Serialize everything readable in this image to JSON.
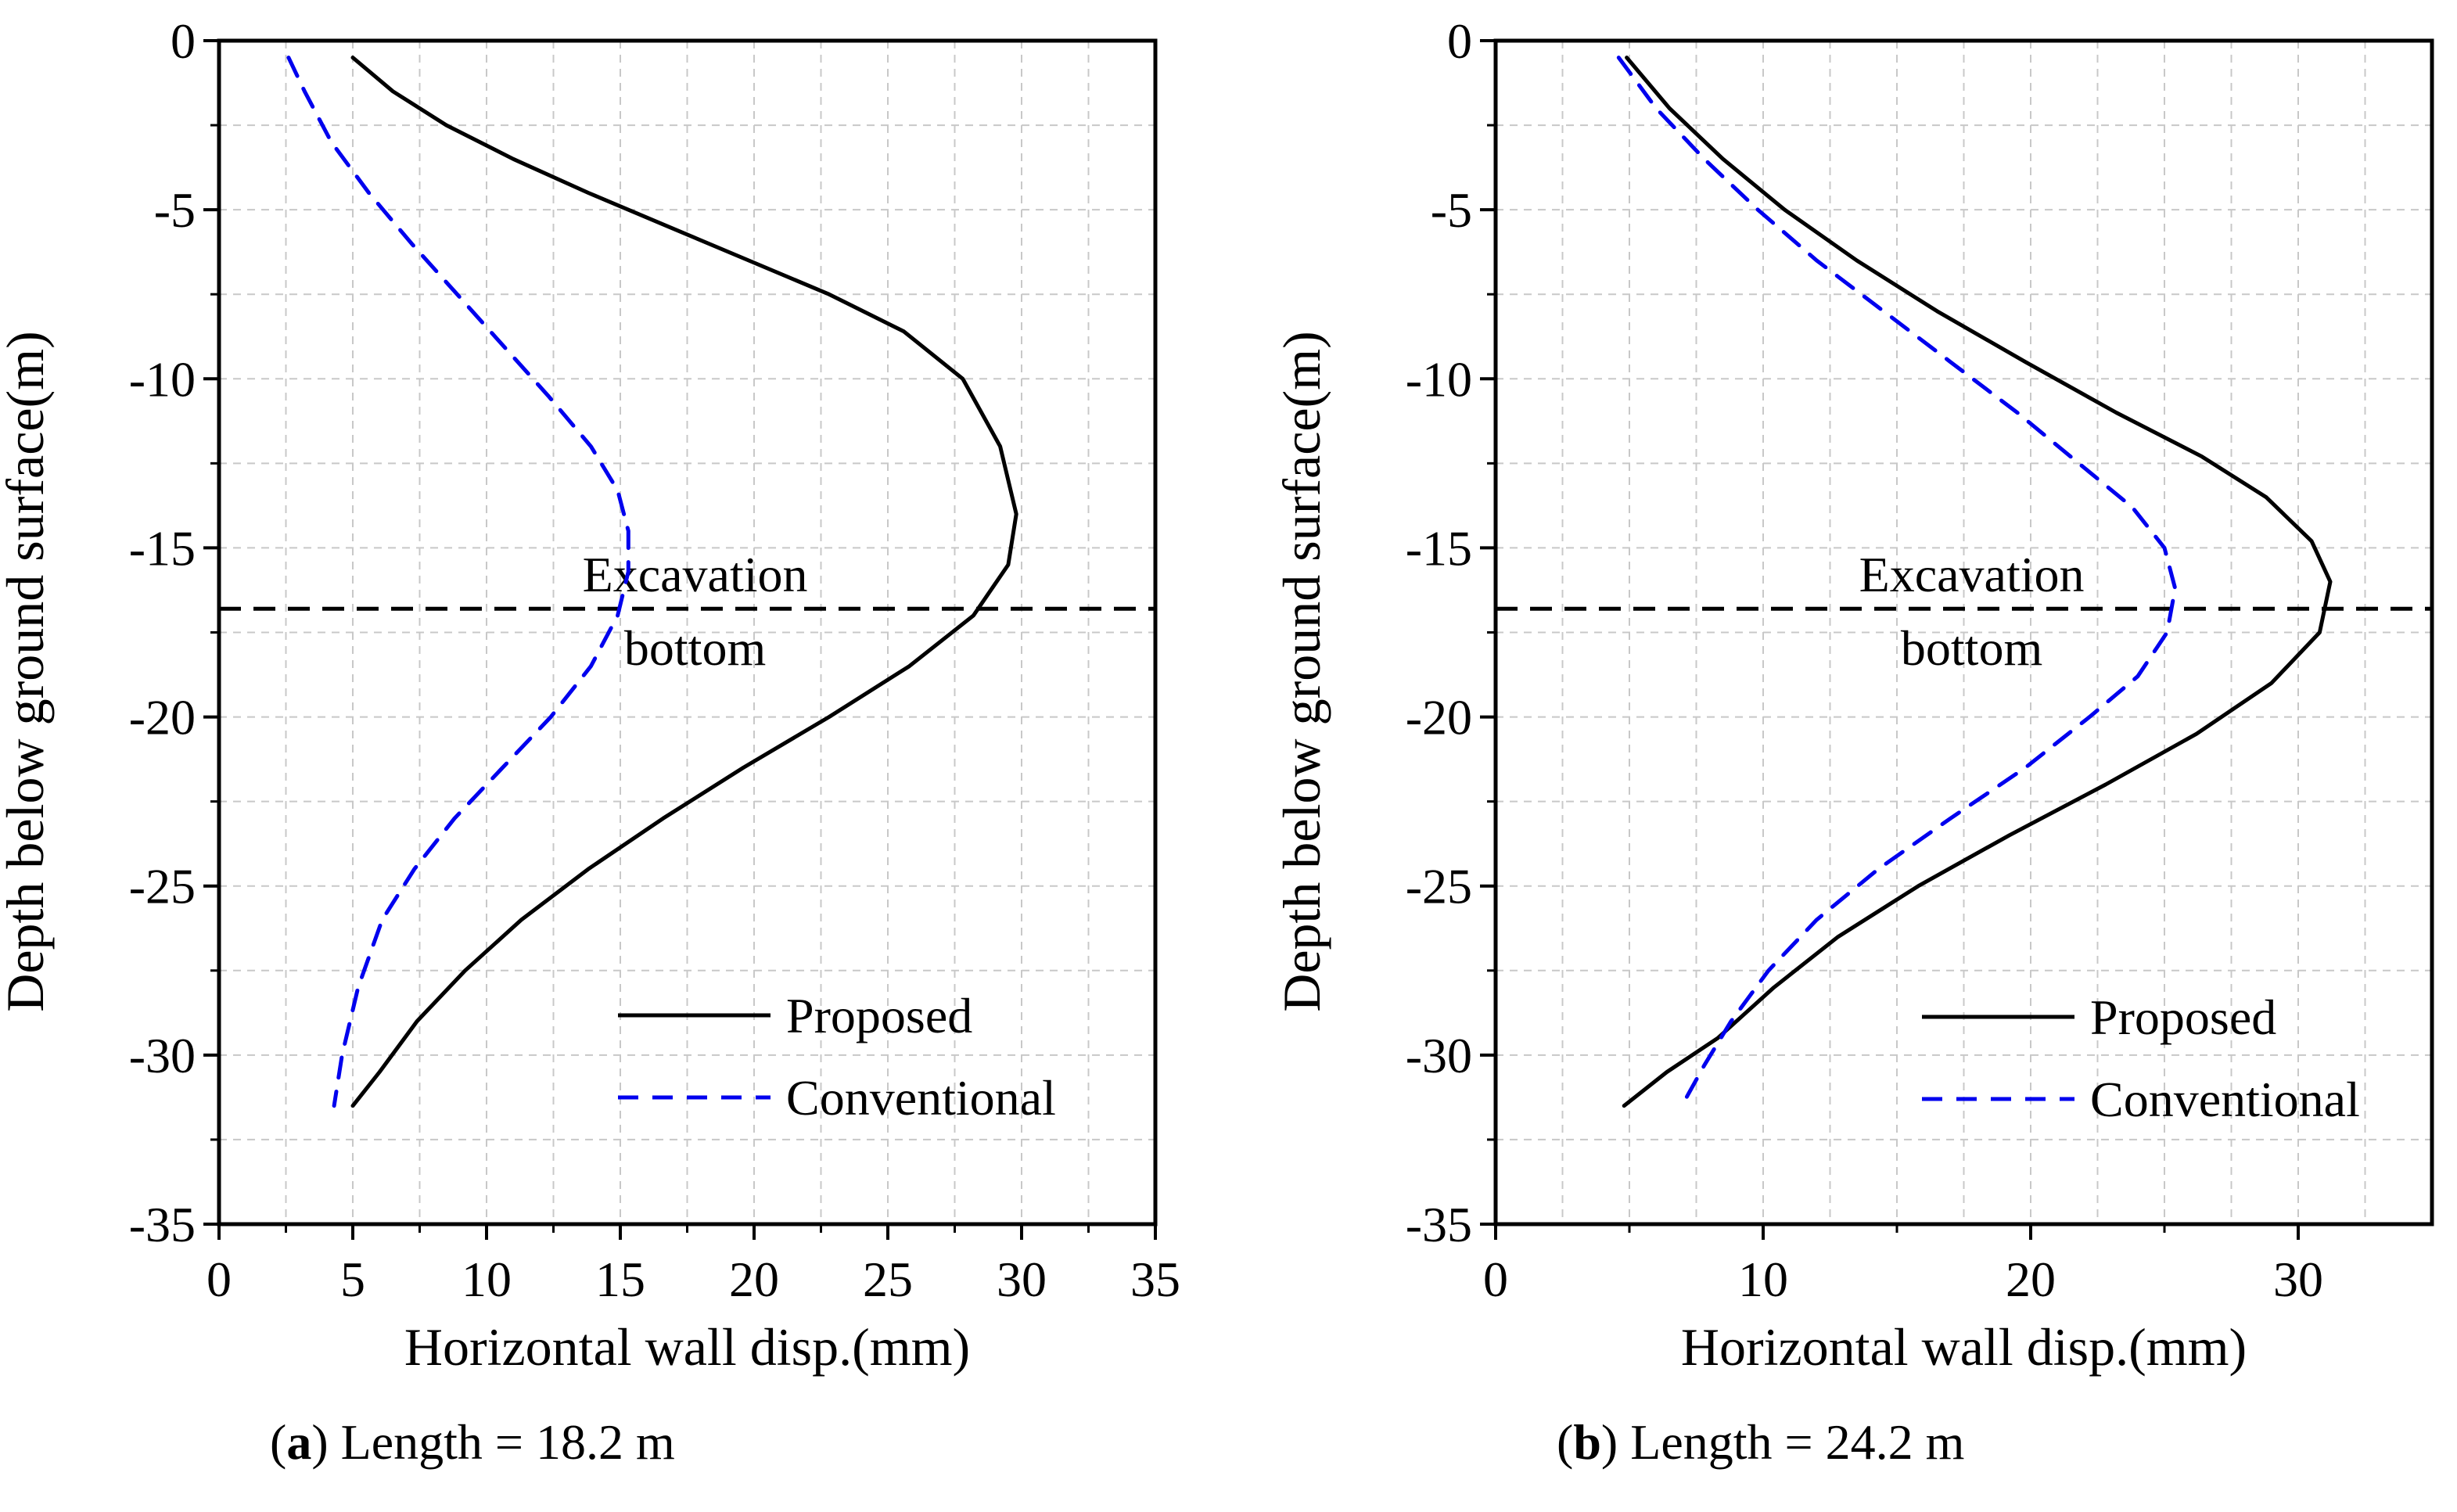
{
  "chart_data": [
    {
      "type": "line",
      "panel_label": "a",
      "caption": "Length = 18.2 m",
      "xlabel": "Horizontal wall disp.(mm)",
      "ylabel": "Depth below ground surface(m)",
      "xlim": [
        0,
        35
      ],
      "ylim": [
        -35,
        0
      ],
      "xticks": [
        0,
        5,
        10,
        15,
        20,
        25,
        30,
        35
      ],
      "yticks": [
        0,
        -5,
        -10,
        -15,
        -20,
        -25,
        -30,
        -35
      ],
      "grid": true,
      "legend_position": "bottom-right",
      "reference_line": {
        "depth": -16.8,
        "label_line1": "Excavation",
        "label_line2": "bottom",
        "color": "#000000"
      },
      "series": [
        {
          "name": "Proposed",
          "style": "solid",
          "color": "#000000",
          "x": [
            5.0,
            6.5,
            8.5,
            11.0,
            13.8,
            16.8,
            19.8,
            22.8,
            25.6,
            27.8,
            29.2,
            29.8,
            29.5,
            28.2,
            25.8,
            22.8,
            19.6,
            16.6,
            13.8,
            11.3,
            9.2,
            7.4,
            6.0,
            5.0
          ],
          "y": [
            -0.5,
            -1.5,
            -2.5,
            -3.5,
            -4.5,
            -5.5,
            -6.5,
            -7.5,
            -8.6,
            -10.0,
            -12.0,
            -14.0,
            -15.5,
            -17.0,
            -18.5,
            -20.0,
            -21.5,
            -23.0,
            -24.5,
            -26.0,
            -27.5,
            -29.0,
            -30.5,
            -31.5
          ]
        },
        {
          "name": "Conventional",
          "style": "dashed",
          "color": "#0000ee",
          "x": [
            2.6,
            3.2,
            4.2,
            5.6,
            7.2,
            8.9,
            10.6,
            12.3,
            13.9,
            14.9,
            15.3,
            15.3,
            14.9,
            13.9,
            12.4,
            10.6,
            8.8,
            7.3,
            6.1,
            5.2,
            4.6,
            4.3
          ],
          "y": [
            -0.5,
            -1.5,
            -3.0,
            -4.5,
            -6.0,
            -7.5,
            -9.0,
            -10.5,
            -12.0,
            -13.3,
            -14.5,
            -15.7,
            -17.0,
            -18.5,
            -20.0,
            -21.5,
            -23.0,
            -24.5,
            -26.0,
            -28.0,
            -30.0,
            -31.5
          ]
        }
      ]
    },
    {
      "type": "line",
      "panel_label": "b",
      "caption": "Length = 24.2 m",
      "xlabel": "Horizontal wall disp.(mm)",
      "ylabel": "Depth below ground surface(m)",
      "xlim": [
        0,
        35
      ],
      "ylim": [
        -35,
        0
      ],
      "xticks": [
        0,
        10,
        20,
        30
      ],
      "yticks": [
        0,
        -5,
        -10,
        -15,
        -20,
        -25,
        -30,
        -35
      ],
      "grid": true,
      "legend_position": "bottom-right",
      "reference_line": {
        "depth": -16.8,
        "label_line1": "Excavation",
        "label_line2": "bottom",
        "color": "#000000"
      },
      "series": [
        {
          "name": "Proposed",
          "style": "solid",
          "color": "#000000",
          "x": [
            4.9,
            6.5,
            8.5,
            10.8,
            13.5,
            16.5,
            19.8,
            23.2,
            26.4,
            28.8,
            30.5,
            31.2,
            30.8,
            29.0,
            26.2,
            22.8,
            19.2,
            15.8,
            12.8,
            10.4,
            8.3,
            6.4,
            4.8
          ],
          "y": [
            -0.5,
            -2.0,
            -3.5,
            -5.0,
            -6.5,
            -8.0,
            -9.5,
            -11.0,
            -12.3,
            -13.5,
            -14.8,
            -16.0,
            -17.5,
            -19.0,
            -20.5,
            -22.0,
            -23.5,
            -25.0,
            -26.5,
            -28.0,
            -29.5,
            -30.5,
            -31.5
          ]
        },
        {
          "name": "Conventional",
          "style": "dashed",
          "color": "#0000ee",
          "x": [
            4.6,
            6.0,
            7.8,
            9.8,
            12.0,
            14.5,
            17.0,
            19.5,
            21.8,
            23.8,
            25.0,
            25.4,
            25.1,
            24.0,
            22.2,
            19.8,
            17.0,
            14.3,
            12.0,
            10.2,
            8.8,
            7.8,
            7.1
          ],
          "y": [
            -0.5,
            -2.0,
            -3.5,
            -5.0,
            -6.5,
            -8.0,
            -9.5,
            -11.0,
            -12.5,
            -13.8,
            -15.0,
            -16.2,
            -17.5,
            -18.8,
            -20.0,
            -21.5,
            -23.0,
            -24.5,
            -26.0,
            -27.5,
            -29.0,
            -30.3,
            -31.3
          ]
        }
      ]
    }
  ]
}
